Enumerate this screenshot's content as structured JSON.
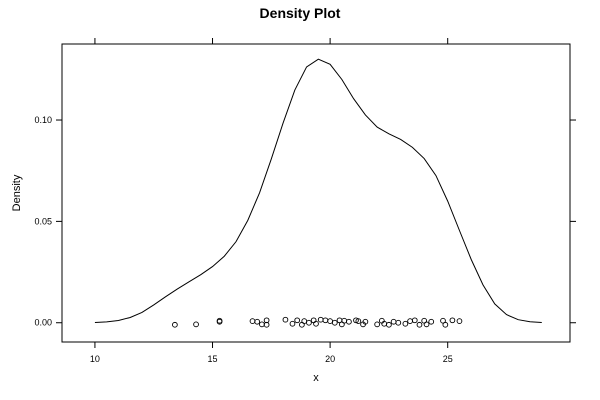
{
  "chart_data": {
    "type": "line",
    "title": "Density Plot",
    "xlabel": "x",
    "ylabel": "Density",
    "xlim": [
      8.6,
      30.2
    ],
    "ylim": [
      -0.0095,
      0.1375
    ],
    "grid": false,
    "legend": "none",
    "x_ticks": [
      {
        "value": 10,
        "label": "10"
      },
      {
        "value": 15,
        "label": "15"
      },
      {
        "value": 20,
        "label": "20"
      },
      {
        "value": 25,
        "label": "25"
      }
    ],
    "y_ticks": [
      {
        "value": 0.0,
        "label": "0.00"
      },
      {
        "value": 0.05,
        "label": "0.05"
      },
      {
        "value": 0.1,
        "label": "0.10"
      }
    ],
    "series": [
      {
        "kind": "density",
        "x": [
          10.0,
          10.5,
          11.0,
          11.5,
          12.0,
          12.5,
          13.0,
          13.5,
          14.0,
          14.5,
          15.0,
          15.5,
          16.0,
          16.5,
          17.0,
          17.5,
          18.0,
          18.5,
          19.0,
          19.5,
          20.0,
          20.5,
          21.0,
          21.5,
          22.0,
          22.5,
          23.0,
          23.5,
          24.0,
          24.5,
          25.0,
          25.5,
          26.0,
          26.5,
          27.0,
          27.5,
          28.0,
          28.5,
          29.0
        ],
        "y": [
          0.0001,
          0.0004,
          0.0011,
          0.0026,
          0.0051,
          0.0088,
          0.0128,
          0.0166,
          0.0202,
          0.0237,
          0.0277,
          0.0328,
          0.04,
          0.0505,
          0.0641,
          0.0808,
          0.0985,
          0.1148,
          0.1262,
          0.13,
          0.1275,
          0.12,
          0.1105,
          0.1025,
          0.0965,
          0.0932,
          0.0904,
          0.0865,
          0.081,
          0.0726,
          0.06,
          0.0455,
          0.0312,
          0.0187,
          0.0093,
          0.004,
          0.0015,
          0.0005,
          0.0001
        ]
      },
      {
        "kind": "rug-points",
        "x": [
          13.4,
          14.3,
          15.3,
          15.3,
          16.7,
          16.9,
          17.1,
          17.3,
          17.3,
          18.1,
          18.4,
          18.6,
          18.8,
          18.9,
          19.1,
          19.3,
          19.4,
          19.6,
          19.8,
          20.0,
          20.2,
          20.4,
          20.5,
          20.6,
          20.8,
          21.1,
          21.2,
          21.4,
          21.5,
          22.0,
          22.2,
          22.3,
          22.5,
          22.7,
          22.9,
          23.2,
          23.4,
          23.6,
          23.8,
          24.0,
          24.1,
          24.3,
          24.8,
          24.9,
          25.2,
          25.5
        ],
        "y": [
          -0.001,
          -0.0008,
          0.0005,
          0.001,
          0.0008,
          0.0005,
          -0.0008,
          0.0012,
          -0.001,
          0.0015,
          -0.0005,
          0.0012,
          -0.001,
          0.0008,
          0.0,
          0.0012,
          -0.0005,
          0.0015,
          0.0012,
          0.0008,
          0.0,
          0.0012,
          -0.0008,
          0.001,
          0.0005,
          0.0012,
          0.0008,
          -0.0008,
          0.0005,
          -0.0008,
          0.001,
          -0.0005,
          -0.001,
          0.0005,
          0.0,
          -0.0005,
          0.0008,
          0.0012,
          -0.001,
          0.001,
          -0.0008,
          0.0005,
          0.001,
          -0.001,
          0.0012,
          0.0008
        ]
      }
    ]
  }
}
